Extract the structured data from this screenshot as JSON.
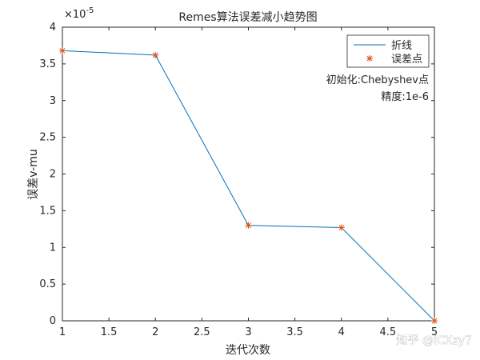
{
  "chart_data": {
    "type": "line",
    "title": "Remes算法误差减小趋势图",
    "xlabel": "迭代次数",
    "ylabel": "误差v-mu",
    "xlim": [
      1,
      5
    ],
    "ylim": [
      0,
      4
    ],
    "y_exponent_label": "×10",
    "y_exponent_power": "-5",
    "x_ticks": [
      "1",
      "1.5",
      "2",
      "2.5",
      "3",
      "3.5",
      "4",
      "4.5",
      "5"
    ],
    "y_ticks": [
      "0",
      "0.5",
      "1",
      "1.5",
      "2",
      "2.5",
      "3",
      "3.5",
      "4"
    ],
    "grid": false,
    "legend_position": "top-right",
    "series": [
      {
        "name": "折线",
        "style": "line",
        "color": "#0072BD",
        "x": [
          1,
          2,
          3,
          4,
          5
        ],
        "y": [
          3.68,
          3.62,
          1.3,
          1.27,
          0.0
        ]
      },
      {
        "name": "误差点",
        "style": "marker-star",
        "color": "#D95319",
        "x": [
          1,
          2,
          3,
          4,
          5
        ],
        "y": [
          3.68,
          3.62,
          1.3,
          1.27,
          0.0
        ]
      }
    ],
    "annotations": [
      "初始化:Chebyshev点",
      "精度:1e-6"
    ]
  },
  "watermark": "知乎 @ICXzy7"
}
